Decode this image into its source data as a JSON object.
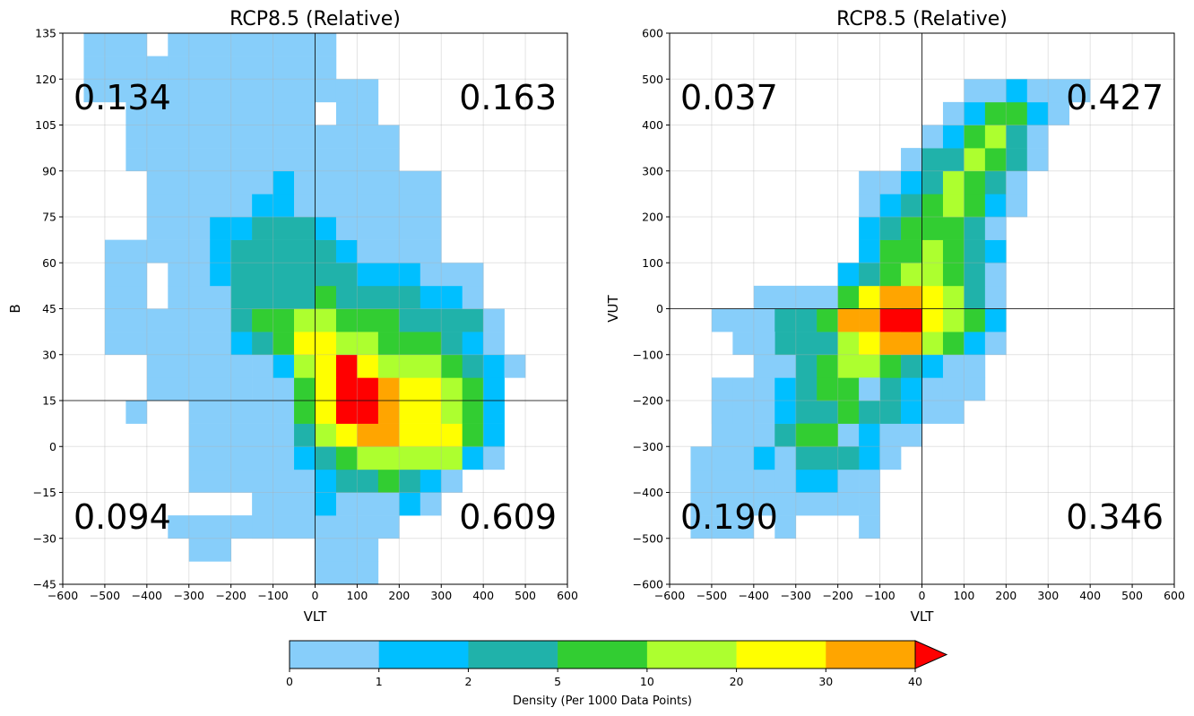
{
  "chart_data": [
    {
      "type": "heatmap",
      "title": "RCP8.5 (Relative)",
      "xlabel": "VLT",
      "ylabel": "B",
      "xlim": [
        -600,
        600
      ],
      "ylim": [
        -45,
        135
      ],
      "xticks": [
        -600,
        -500,
        -400,
        -300,
        -200,
        -100,
        0,
        100,
        200,
        300,
        400,
        500,
        600
      ],
      "yticks": [
        -45,
        -30,
        -15,
        0,
        15,
        30,
        45,
        60,
        75,
        90,
        105,
        120,
        135
      ],
      "grid": true,
      "crosshair": {
        "x": 0,
        "y": 15
      },
      "x_bin_start": -600,
      "x_bin_width": 50,
      "y_bin_start": -45,
      "y_bin_width": 7.5,
      "quadrant_labels": {
        "top_left": "0.134",
        "top_right": "0.163",
        "bottom_left": "0.094",
        "bottom_right": "0.609"
      },
      "rows_top_to_bottom": [
        "......11................",
        "...111.1.11.............",
        "...11111111111..........",
        "...111111111111.........",
        "...111111111111.........",
        "....11111111111.........",
        "....111111111.1.........",
        "....1111111111111.......",
        "....11111111111111......",
        "....1111111H11111.......",
        "....11111HH111111.......",
        "....1111bbccc11111......",
        "...11111bbccccc111......",
        "...111.1bcccccc111......",
        "...111.11cccccccHH11....",
        "...111.11ccccccccccH11..",
        "...111.11cdddaadddcd....",
        "...111.11cdddlllccccc...",
        "...111..1Hcccryllccd....",
        "....111...Hcddlylmccd.1.",
        "....111111Hclryrmmmdc1..",
        "....11.111..dcrrryyyyldH1..",
        "......1111.1cdlyyyyyydH..",
        "......1111.1Hdclyyyyyydd1.",
        "......11111bldoomyyyyyd1..",
        "......11111Hcddllllllldd1..",
        "......1111111Hcccccdc1....",
        ".........11111111111H1....",
        "..........111.11111111....",
        ".............111111......."
      ],
      "counts": []
    },
    {
      "type": "heatmap",
      "title": "RCP8.5 (Relative)",
      "xlabel": "VLT",
      "ylabel": "VUT",
      "xlim": [
        -600,
        600
      ],
      "ylim": [
        -600,
        600
      ],
      "xticks": [
        -600,
        -500,
        -400,
        -300,
        -200,
        -100,
        0,
        100,
        200,
        300,
        400,
        500,
        600
      ],
      "yticks": [
        -600,
        -500,
        -400,
        -300,
        -200,
        -100,
        0,
        100,
        200,
        300,
        400,
        500,
        600
      ],
      "grid": true,
      "crosshair": {
        "x": 0,
        "y": 0
      },
      "x_bin_start": -600,
      "x_bin_width": 50,
      "y_bin_start": -600,
      "y_bin_width": 50,
      "quadrant_labels": {
        "top_left": "0.037",
        "top_right": "0.427",
        "bottom_left": "0.190",
        "bottom_right": "0.346"
      },
      "rows_top_to_bottom": []
    }
  ],
  "colorbar": {
    "label": "Density (Per 1000 Data Points)",
    "ticks": [
      "0",
      "1",
      "2",
      "5",
      "10",
      "20",
      "30",
      "40"
    ],
    "colors": [
      "#87cefa",
      "#00bfff",
      "#20b2aa",
      "#32cd32",
      "#adff2f",
      "#ffff00",
      "#ffa500"
    ],
    "extend_color": "#ff0000"
  },
  "legend_colors": {
    "1": "#87cefa",
    "b": "#00bfff",
    "c": "#20b2aa",
    "d": "#32cd32",
    "l": "#adff2f",
    "y": "#ffff00",
    "o": "#ffa500",
    "r": "#ff0000"
  }
}
